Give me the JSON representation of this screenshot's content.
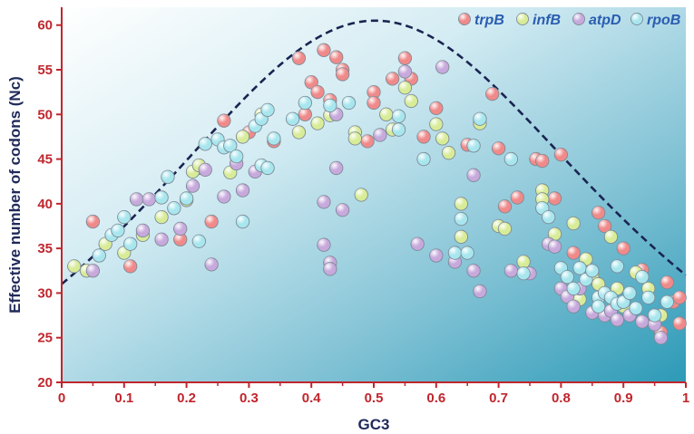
{
  "chart_data": {
    "type": "scatter",
    "title": "",
    "xlabel": "GC3",
    "ylabel": "Effective number of codons (Nc)",
    "xlim": [
      0,
      1
    ],
    "ylim": [
      20,
      62
    ],
    "xticks": [
      "0",
      "0.1",
      "0.2",
      "0.3",
      "0.4",
      "0.5",
      "0.6",
      "0.7",
      "0.8",
      "0.9",
      "1"
    ],
    "yticks": [
      "20",
      "25",
      "30",
      "35",
      "40",
      "45",
      "50",
      "55",
      "60"
    ],
    "grid": false,
    "legend_position": "top-right",
    "expected_curve": {
      "name": "",
      "style": "dashed",
      "color": "#1a2452",
      "formula": "Nc = 2 + s + 29/(s^2 + (1-s)^2), s = GC3"
    },
    "series": [
      {
        "name": "trpB",
        "color": "#f08a8a",
        "points": [
          [
            0.05,
            38
          ],
          [
            0.11,
            33
          ],
          [
            0.19,
            36
          ],
          [
            0.22,
            44
          ],
          [
            0.24,
            38
          ],
          [
            0.26,
            49.3
          ],
          [
            0.3,
            48
          ],
          [
            0.34,
            47
          ],
          [
            0.38,
            56.3
          ],
          [
            0.39,
            50
          ],
          [
            0.4,
            53.6
          ],
          [
            0.41,
            52.5
          ],
          [
            0.42,
            57.2
          ],
          [
            0.43,
            51.6
          ],
          [
            0.44,
            56.4
          ],
          [
            0.45,
            55
          ],
          [
            0.45,
            54.5
          ],
          [
            0.49,
            47
          ],
          [
            0.5,
            52.5
          ],
          [
            0.5,
            51.3
          ],
          [
            0.53,
            54
          ],
          [
            0.55,
            56.3
          ],
          [
            0.56,
            54
          ],
          [
            0.58,
            47.5
          ],
          [
            0.6,
            50.7
          ],
          [
            0.65,
            46.6
          ],
          [
            0.69,
            52.3
          ],
          [
            0.7,
            46.2
          ],
          [
            0.71,
            39.7
          ],
          [
            0.73,
            40.7
          ],
          [
            0.76,
            45
          ],
          [
            0.77,
            44.8
          ],
          [
            0.79,
            40.6
          ],
          [
            0.8,
            45.5
          ],
          [
            0.82,
            34.5
          ],
          [
            0.86,
            39
          ],
          [
            0.87,
            37.5
          ],
          [
            0.9,
            35
          ],
          [
            0.93,
            32.6
          ],
          [
            0.96,
            25.6
          ],
          [
            0.97,
            31.2
          ],
          [
            0.98,
            29
          ],
          [
            0.99,
            26.6
          ],
          [
            0.99,
            29.5
          ]
        ]
      },
      {
        "name": "infB",
        "color": "#d8ec98",
        "points": [
          [
            0.02,
            33
          ],
          [
            0.04,
            32.5
          ],
          [
            0.07,
            35.5
          ],
          [
            0.1,
            34.5
          ],
          [
            0.13,
            36.5
          ],
          [
            0.16,
            38.5
          ],
          [
            0.2,
            40.4
          ],
          [
            0.21,
            43.6
          ],
          [
            0.22,
            44.3
          ],
          [
            0.27,
            43.5
          ],
          [
            0.29,
            47.5
          ],
          [
            0.32,
            50
          ],
          [
            0.38,
            48
          ],
          [
            0.41,
            49
          ],
          [
            0.43,
            49.9
          ],
          [
            0.47,
            48
          ],
          [
            0.47,
            47.3
          ],
          [
            0.48,
            41
          ],
          [
            0.52,
            50
          ],
          [
            0.53,
            48.3
          ],
          [
            0.55,
            53
          ],
          [
            0.56,
            51.5
          ],
          [
            0.6,
            48.9
          ],
          [
            0.61,
            47.3
          ],
          [
            0.62,
            45.7
          ],
          [
            0.64,
            40
          ],
          [
            0.64,
            36.3
          ],
          [
            0.67,
            49
          ],
          [
            0.7,
            37.5
          ],
          [
            0.71,
            37.2
          ],
          [
            0.74,
            33.5
          ],
          [
            0.77,
            41.5
          ],
          [
            0.77,
            40.5
          ],
          [
            0.79,
            36.6
          ],
          [
            0.82,
            37.8
          ],
          [
            0.83,
            29.3
          ],
          [
            0.84,
            33.8
          ],
          [
            0.85,
            32
          ],
          [
            0.86,
            31
          ],
          [
            0.88,
            36.3
          ],
          [
            0.89,
            30.5
          ],
          [
            0.9,
            28.5
          ],
          [
            0.92,
            32.3
          ],
          [
            0.94,
            30.5
          ],
          [
            0.96,
            27.5
          ]
        ]
      },
      {
        "name": "atpD",
        "color": "#c7a9dc",
        "points": [
          [
            0.05,
            32.5
          ],
          [
            0.12,
            40.5
          ],
          [
            0.13,
            37
          ],
          [
            0.14,
            40.5
          ],
          [
            0.16,
            36
          ],
          [
            0.19,
            37.2
          ],
          [
            0.21,
            42
          ],
          [
            0.23,
            43.8
          ],
          [
            0.24,
            33.2
          ],
          [
            0.26,
            40.8
          ],
          [
            0.28,
            44.5
          ],
          [
            0.29,
            41.5
          ],
          [
            0.31,
            43.6
          ],
          [
            0.42,
            40.2
          ],
          [
            0.42,
            35.4
          ],
          [
            0.43,
            33.4
          ],
          [
            0.43,
            32.7
          ],
          [
            0.44,
            44
          ],
          [
            0.45,
            39.3
          ],
          [
            0.44,
            50
          ],
          [
            0.51,
            47.7
          ],
          [
            0.55,
            54.8
          ],
          [
            0.57,
            35.5
          ],
          [
            0.6,
            34.2
          ],
          [
            0.61,
            55.3
          ],
          [
            0.63,
            33.5
          ],
          [
            0.66,
            43.2
          ],
          [
            0.66,
            32.5
          ],
          [
            0.67,
            30.2
          ],
          [
            0.72,
            32.5
          ],
          [
            0.75,
            32.2
          ],
          [
            0.78,
            35.5
          ],
          [
            0.79,
            35.2
          ],
          [
            0.8,
            30.5
          ],
          [
            0.81,
            29.6
          ],
          [
            0.82,
            28.5
          ],
          [
            0.83,
            30.5
          ],
          [
            0.85,
            27.8
          ],
          [
            0.87,
            27.5
          ],
          [
            0.88,
            28
          ],
          [
            0.89,
            27
          ],
          [
            0.91,
            27.5
          ],
          [
            0.93,
            26.8
          ],
          [
            0.95,
            26.5
          ],
          [
            0.96,
            25
          ]
        ]
      },
      {
        "name": "rpoB",
        "color": "#a8e6ee",
        "points": [
          [
            0.06,
            34.2
          ],
          [
            0.08,
            36.5
          ],
          [
            0.09,
            37
          ],
          [
            0.1,
            38.5
          ],
          [
            0.11,
            35.5
          ],
          [
            0.16,
            40.7
          ],
          [
            0.17,
            43
          ],
          [
            0.18,
            39.5
          ],
          [
            0.2,
            40.6
          ],
          [
            0.22,
            35.8
          ],
          [
            0.23,
            46.7
          ],
          [
            0.25,
            47.2
          ],
          [
            0.26,
            46.3
          ],
          [
            0.27,
            46.5
          ],
          [
            0.28,
            45.3
          ],
          [
            0.29,
            38
          ],
          [
            0.31,
            48.7
          ],
          [
            0.32,
            49.5
          ],
          [
            0.33,
            50.5
          ],
          [
            0.32,
            44.3
          ],
          [
            0.33,
            44
          ],
          [
            0.34,
            47.3
          ],
          [
            0.37,
            49.5
          ],
          [
            0.39,
            51.3
          ],
          [
            0.43,
            51
          ],
          [
            0.46,
            51.3
          ],
          [
            0.54,
            49.8
          ],
          [
            0.54,
            48.3
          ],
          [
            0.58,
            45
          ],
          [
            0.63,
            34.5
          ],
          [
            0.64,
            38.3
          ],
          [
            0.65,
            34.5
          ],
          [
            0.66,
            46.5
          ],
          [
            0.67,
            49.5
          ],
          [
            0.72,
            45
          ],
          [
            0.74,
            32.2
          ],
          [
            0.77,
            39.5
          ],
          [
            0.78,
            38.5
          ],
          [
            0.8,
            32.8
          ],
          [
            0.81,
            31.8
          ],
          [
            0.82,
            30.5
          ],
          [
            0.83,
            32.8
          ],
          [
            0.84,
            31.5
          ],
          [
            0.85,
            32.5
          ],
          [
            0.86,
            29.5
          ],
          [
            0.86,
            28.5
          ],
          [
            0.87,
            30
          ],
          [
            0.88,
            29.5
          ],
          [
            0.89,
            33
          ],
          [
            0.89,
            28.8
          ],
          [
            0.9,
            29
          ],
          [
            0.91,
            30
          ],
          [
            0.92,
            28.3
          ],
          [
            0.93,
            31.8
          ],
          [
            0.94,
            29.5
          ],
          [
            0.95,
            27.5
          ],
          [
            0.97,
            29
          ]
        ]
      }
    ],
    "colors": {
      "axis": "#c0262d",
      "axis_title": "#1f2a5a",
      "legend_text": "#2a5db0",
      "background_light": "#ffffff",
      "background_dark": "#0f7a99"
    }
  }
}
